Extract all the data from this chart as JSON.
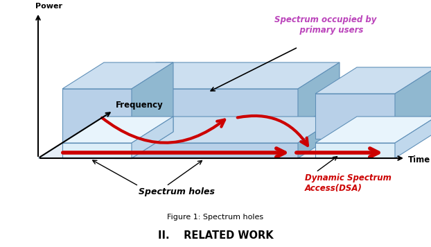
{
  "title": "Figure 1: Spectrum holes",
  "section_title": "II.    RELATED WORK",
  "bg_color": "#ffffff",
  "label_power": "Power",
  "label_frequency": "Frequency",
  "label_time": "Time",
  "label_spectrum_holes": "Spectrum holes",
  "label_dsa": "Dynamic Spectrum\nAccess(DSA)",
  "label_primary": "Spectrum occupied by\n    primary users",
  "box_face_color": "#b8d0e8",
  "box_face_light": "#ddeef8",
  "box_edge_color": "#6090b8",
  "box_top_color": "#ccdff0",
  "box_side_color": "#90b8d0",
  "floor_color": "#ccdff0",
  "arrow_color": "#cc0000",
  "annotation_color": "#000000",
  "primary_label_color": "#bb44bb",
  "dsa_label_color": "#cc0000"
}
